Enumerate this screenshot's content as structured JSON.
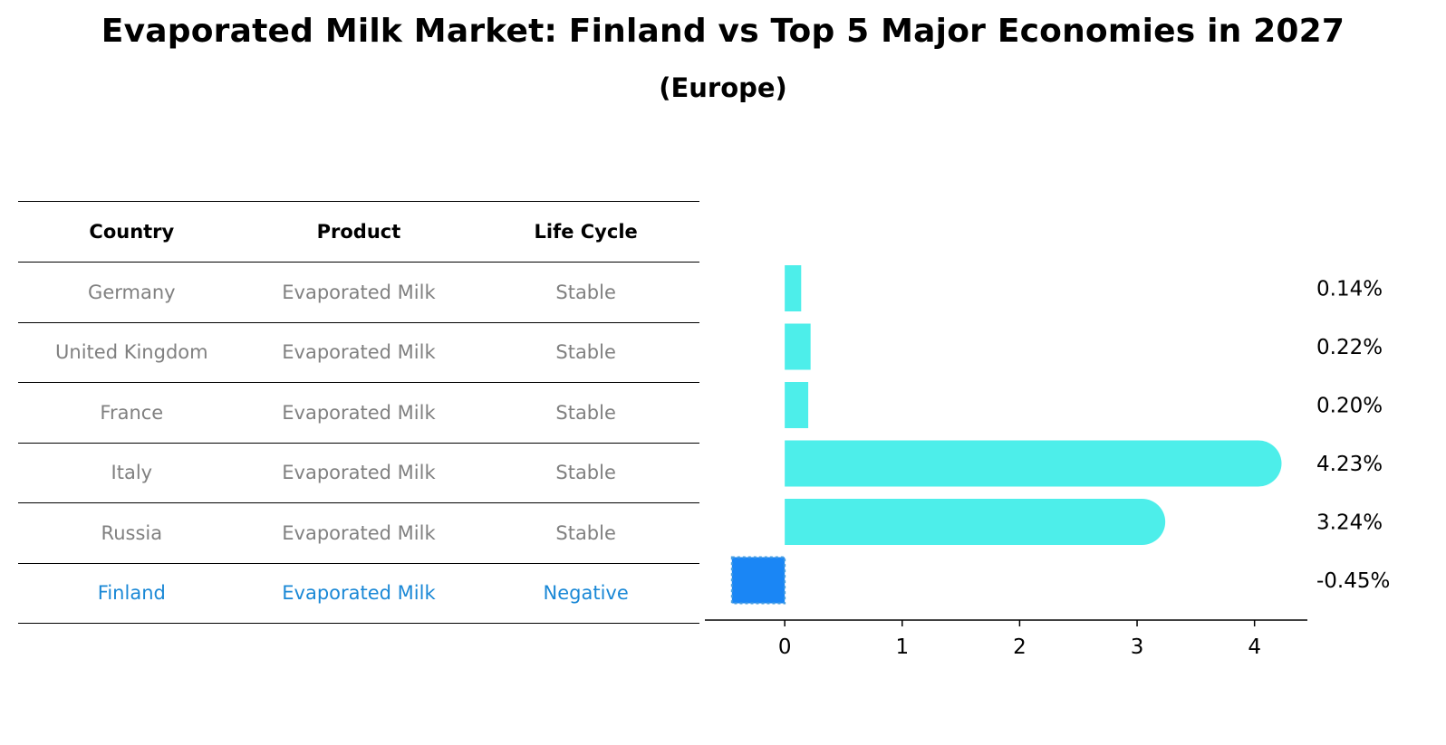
{
  "header": {
    "title": "Evaporated Milk Market: Finland vs Top 5 Major Economies in 2027",
    "subtitle": "(Europe)"
  },
  "table": {
    "columns": [
      "Country",
      "Product",
      "Life Cycle"
    ],
    "rows": [
      {
        "country": "Germany",
        "product": "Evaporated Milk",
        "life_cycle": "Stable"
      },
      {
        "country": "United Kingdom",
        "product": "Evaporated Milk",
        "life_cycle": "Stable"
      },
      {
        "country": "France",
        "product": "Evaporated Milk",
        "life_cycle": "Stable"
      },
      {
        "country": "Italy",
        "product": "Evaporated Milk",
        "life_cycle": "Stable"
      },
      {
        "country": "Russia",
        "product": "Evaporated Milk",
        "life_cycle": "Stable"
      },
      {
        "country": "Finland",
        "product": "Evaporated Milk",
        "life_cycle": "Negative"
      }
    ],
    "highlight_row": "Finland",
    "text_color": "#808080",
    "highlight_color": "#1a88d6"
  },
  "chart_data": {
    "type": "bar",
    "orientation": "horizontal",
    "categories": [
      "Germany",
      "United Kingdom",
      "France",
      "Italy",
      "Russia",
      "Finland"
    ],
    "values": [
      0.14,
      0.22,
      0.2,
      4.23,
      3.24,
      -0.45
    ],
    "value_labels": [
      "0.14%",
      "0.22%",
      "0.20%",
      "4.23%",
      "3.24%",
      "-0.45%"
    ],
    "xlim": [
      -0.68,
      4.45
    ],
    "xticks": [
      0,
      1,
      2,
      3,
      4
    ],
    "colors": {
      "default": "#4deeea",
      "highlight": "#1a86f5"
    },
    "highlight": "Finland",
    "grid": false
  }
}
